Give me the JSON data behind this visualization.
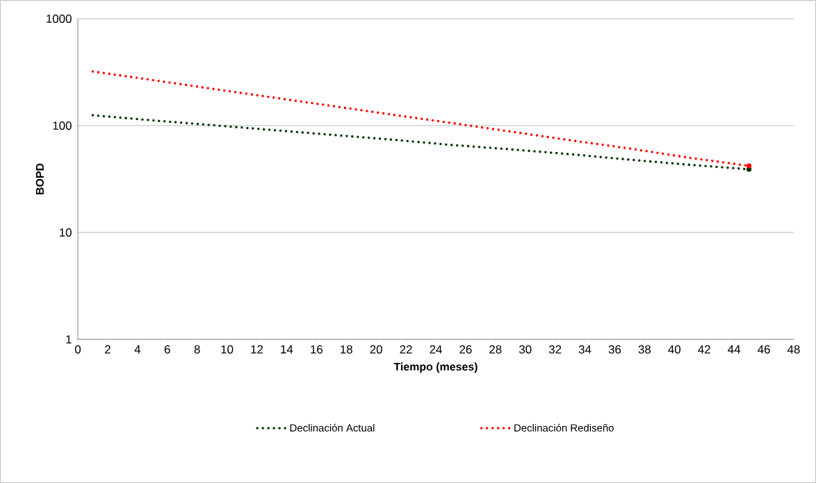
{
  "chart_data": {
    "type": "line",
    "xlabel": "Tiempo (meses)",
    "ylabel": "BOPD",
    "log": "y",
    "grid": "y",
    "legend": "bottom",
    "marker": "none",
    "line_style": "dotted",
    "xlim": [
      0,
      48
    ],
    "xticks": [
      0,
      2,
      4,
      6,
      8,
      10,
      12,
      14,
      16,
      18,
      20,
      22,
      24,
      26,
      28,
      30,
      32,
      34,
      36,
      38,
      40,
      42,
      44,
      46,
      48
    ],
    "ylim": [
      1,
      1000
    ],
    "yticks": [
      1,
      10,
      100,
      1000
    ],
    "x": [
      1,
      5,
      9,
      13,
      17,
      21,
      25,
      29,
      33,
      37,
      41,
      45
    ],
    "series": [
      {
        "name": "Declinación Actual",
        "color": "#003300",
        "values": [
          125,
          112,
          101,
          91,
          82,
          74,
          66,
          60,
          54,
          48,
          43,
          39
        ]
      },
      {
        "name": "Declinación Rediseño",
        "color": "#ff0000",
        "values": [
          321,
          267,
          221,
          184,
          153,
          127,
          106,
          88,
          73,
          61,
          50,
          42
        ]
      }
    ]
  }
}
